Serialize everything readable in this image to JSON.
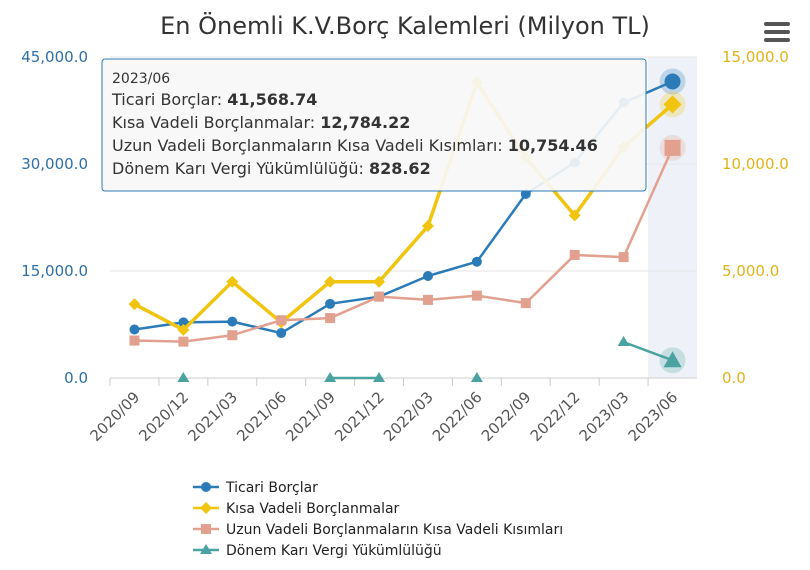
{
  "colors": {
    "ticari": "#2b7bb9",
    "kisa": "#f1c40f",
    "uzun": "#e2a08f",
    "donem": "#4aa3a0",
    "left_axis": "#2e6fa8",
    "right_axis": "#e0b419",
    "grid": "#e6e6e6",
    "highlight": "#eef2f8"
  },
  "menu": {
    "icon": "hamburger-menu-icon"
  },
  "chart_data": {
    "type": "line",
    "title": "En Önemli K.V.Borç Kalemleri (Milyon TL)",
    "categories": [
      "2020/09",
      "2020/12",
      "2021/03",
      "2021/06",
      "2021/09",
      "2021/12",
      "2022/03",
      "2022/06",
      "2022/09",
      "2022/12",
      "2023/03",
      "2023/06"
    ],
    "y_left": {
      "min": 0,
      "max": 45000,
      "ticks": [
        0,
        15000,
        30000,
        45000
      ],
      "tick_labels": [
        "0.0",
        "15,000.0",
        "30,000.0",
        "45,000.0"
      ]
    },
    "y_right": {
      "min": 0,
      "max": 15000,
      "ticks": [
        0,
        5000,
        10000,
        15000
      ],
      "tick_labels": [
        "0.0",
        "5,000.0",
        "10,000.0",
        "15,000.0"
      ]
    },
    "grid": true,
    "legend_position": "bottom",
    "highlight_index": 11,
    "series": [
      {
        "name": "Ticari Borçlar",
        "axis": "left",
        "marker": "circle",
        "values": [
          6800,
          7800,
          7900,
          6300,
          10400,
          11400,
          14300,
          16300,
          25800,
          30200,
          38600,
          41568.74
        ]
      },
      {
        "name": "Kısa Vadeli Borçlanmalar",
        "axis": "right",
        "marker": "diamond",
        "values": [
          3450,
          2250,
          4500,
          2600,
          4500,
          4500,
          7100,
          13800,
          10300,
          7600,
          10800,
          12784.22
        ]
      },
      {
        "name": "Uzun Vadeli Borçlanmaların Kısa Vadeli Kısımları",
        "axis": "right",
        "marker": "square",
        "values": [
          1750,
          1700,
          2000,
          2700,
          2800,
          3800,
          3650,
          3850,
          3500,
          5750,
          5650,
          10754.46
        ]
      },
      {
        "name": "Dönem Karı Vergi Yükümlülüğü",
        "axis": "right",
        "marker": "triangle",
        "values": [
          null,
          0,
          null,
          null,
          0,
          0,
          null,
          0,
          null,
          null,
          1680,
          828.62
        ]
      }
    ],
    "tooltip": {
      "header": "2023/06",
      "rows": [
        {
          "label": "Ticari Borçlar: ",
          "value": "41,568.74"
        },
        {
          "label": "Kısa Vadeli Borçlanmalar: ",
          "value": "12,784.22"
        },
        {
          "label": "Uzun Vadeli Borçlanmaların Kısa Vadeli Kısımları: ",
          "value": "10,754.46"
        },
        {
          "label": "Dönem Karı Vergi Yükümlülüğü: ",
          "value": "828.62"
        }
      ]
    }
  }
}
